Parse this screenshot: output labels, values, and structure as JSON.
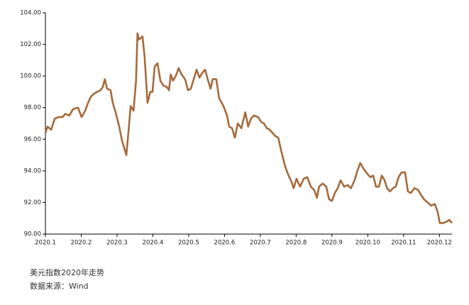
{
  "chart_data": {
    "type": "line",
    "notes": [
      "美元指数2020年走势",
      "数据来源：Wind"
    ],
    "xlim": [
      1,
      12.35
    ],
    "xticks": [
      {
        "value": 1,
        "label": "2020.1"
      },
      {
        "value": 2,
        "label": "2020.2"
      },
      {
        "value": 3,
        "label": "2020.3"
      },
      {
        "value": 4,
        "label": "2020.4"
      },
      {
        "value": 5,
        "label": "2020.5"
      },
      {
        "value": 6,
        "label": "2020.6"
      },
      {
        "value": 7,
        "label": "2020.7"
      },
      {
        "value": 8,
        "label": "2020.8"
      },
      {
        "value": 9,
        "label": "2020.9"
      },
      {
        "value": 10,
        "label": "2020.10"
      },
      {
        "value": 11,
        "label": "2020.11"
      },
      {
        "value": 12,
        "label": "2020.12"
      }
    ],
    "ylim": [
      90,
      104
    ],
    "yticks": [
      {
        "value": 90,
        "label": "90.00"
      },
      {
        "value": 92,
        "label": "92.00"
      },
      {
        "value": 94,
        "label": "94.00"
      },
      {
        "value": 96,
        "label": "96.00"
      },
      {
        "value": 98,
        "label": "98.00"
      },
      {
        "value": 100,
        "label": "100.00"
      },
      {
        "value": 102,
        "label": "102.00"
      },
      {
        "value": 104,
        "label": "104.00"
      }
    ],
    "grid": false,
    "series": [
      {
        "color": "#a56a3c",
        "x": [
          1.0,
          1.06,
          1.16,
          1.26,
          1.36,
          1.48,
          1.55,
          1.67,
          1.77,
          1.91,
          2.01,
          2.11,
          2.19,
          2.27,
          2.37,
          2.45,
          2.54,
          2.6,
          2.66,
          2.72,
          2.82,
          2.88,
          2.96,
          3.06,
          3.14,
          3.26,
          3.32,
          3.38,
          3.46,
          3.53,
          3.57,
          3.61,
          3.71,
          3.77,
          3.85,
          3.93,
          3.99,
          4.05,
          4.13,
          4.21,
          4.29,
          4.39,
          4.45,
          4.5,
          4.56,
          4.64,
          4.72,
          4.8,
          4.9,
          4.98,
          5.06,
          5.14,
          5.22,
          5.3,
          5.38,
          5.46,
          5.53,
          5.61,
          5.67,
          5.77,
          5.85,
          5.97,
          6.07,
          6.13,
          6.21,
          6.29,
          6.37,
          6.47,
          6.58,
          6.66,
          6.74,
          6.82,
          6.94,
          7.02,
          7.1,
          7.18,
          7.26,
          7.34,
          7.42,
          7.5,
          7.59,
          7.69,
          7.77,
          7.87,
          7.93,
          8.01,
          8.11,
          8.21,
          8.31,
          8.41,
          8.5,
          8.58,
          8.64,
          8.74,
          8.84,
          8.92,
          9.0,
          9.08,
          9.16,
          9.24,
          9.34,
          9.44,
          9.53,
          9.63,
          9.71,
          9.79,
          9.89,
          9.99,
          10.07,
          10.15,
          10.23,
          10.31,
          10.39,
          10.47,
          10.54,
          10.62,
          10.7,
          10.78,
          10.86,
          10.94,
          11.04,
          11.12,
          11.2,
          11.3,
          11.4,
          11.48,
          11.57,
          11.67,
          11.77,
          11.87,
          11.95,
          12.01,
          12.11,
          12.21,
          12.27,
          12.35
        ],
        "values": [
          96.4,
          96.8,
          96.6,
          97.3,
          97.4,
          97.4,
          97.6,
          97.5,
          97.9,
          98.0,
          97.4,
          97.8,
          98.3,
          98.7,
          98.9,
          99.0,
          99.1,
          99.3,
          99.8,
          99.2,
          99.1,
          98.3,
          97.7,
          96.8,
          95.9,
          95.0,
          96.5,
          98.1,
          97.8,
          99.7,
          102.7,
          102.3,
          102.5,
          101.2,
          98.3,
          99.0,
          99.0,
          100.6,
          100.8,
          99.7,
          99.4,
          99.3,
          99.1,
          100.1,
          99.7,
          100.0,
          100.5,
          100.1,
          99.8,
          99.1,
          99.2,
          99.8,
          100.4,
          99.9,
          100.2,
          100.4,
          99.8,
          99.2,
          99.8,
          99.8,
          98.6,
          98.1,
          97.5,
          96.8,
          96.7,
          96.1,
          97.0,
          96.7,
          97.7,
          96.8,
          97.3,
          97.5,
          97.4,
          97.1,
          97.0,
          96.7,
          96.6,
          96.4,
          96.2,
          96.1,
          95.2,
          94.3,
          93.8,
          93.3,
          92.9,
          93.5,
          93.0,
          93.5,
          93.6,
          93.0,
          92.8,
          92.3,
          93.0,
          93.2,
          93.0,
          92.2,
          92.1,
          92.6,
          92.9,
          93.4,
          93.0,
          93.1,
          92.9,
          93.4,
          94.0,
          94.5,
          94.1,
          93.8,
          93.6,
          93.7,
          93.0,
          93.0,
          93.7,
          93.4,
          92.9,
          92.7,
          92.9,
          93.0,
          93.6,
          93.9,
          93.9,
          92.7,
          92.6,
          92.9,
          92.8,
          92.5,
          92.2,
          92.0,
          91.8,
          91.9,
          91.4,
          90.7,
          90.7,
          90.8,
          90.9,
          90.7
        ]
      }
    ]
  }
}
